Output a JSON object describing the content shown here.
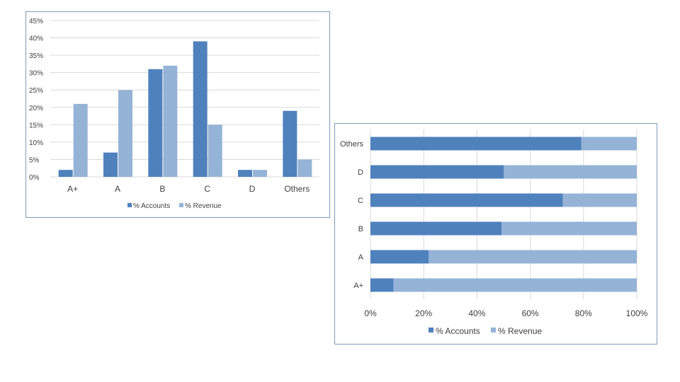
{
  "colors": {
    "accounts": "#4f81bd",
    "revenue": "#95b3d7",
    "grid": "#d9d9d9",
    "text": "#404040"
  },
  "chart_data": [
    {
      "type": "bar",
      "categories": [
        "A+",
        "A",
        "B",
        "C",
        "D",
        "Others"
      ],
      "series": [
        {
          "name": "% Accounts",
          "values": [
            2,
            7,
            31,
            39,
            2,
            19
          ]
        },
        {
          "name": "% Revenue",
          "values": [
            21,
            25,
            32,
            15,
            2,
            5
          ]
        }
      ],
      "y_ticks": [
        "0%",
        "5%",
        "10%",
        "15%",
        "20%",
        "25%",
        "30%",
        "35%",
        "40%",
        "45%"
      ],
      "ylim": [
        0,
        45
      ],
      "grid": true,
      "legend_position": "bottom"
    },
    {
      "type": "bar",
      "orientation": "horizontal",
      "stacked": "percent",
      "categories": [
        "A+",
        "A",
        "B",
        "C",
        "D",
        "Others"
      ],
      "series": [
        {
          "name": "% Accounts",
          "values": [
            8.7,
            21.9,
            49.2,
            72.2,
            50.0,
            79.2
          ]
        },
        {
          "name": "% Revenue",
          "values": [
            91.3,
            78.1,
            50.8,
            27.8,
            50.0,
            20.8
          ]
        }
      ],
      "x_ticks": [
        "0%",
        "20%",
        "40%",
        "60%",
        "80%",
        "100%"
      ],
      "xlim": [
        0,
        100
      ],
      "grid": true,
      "legend_position": "bottom"
    }
  ]
}
